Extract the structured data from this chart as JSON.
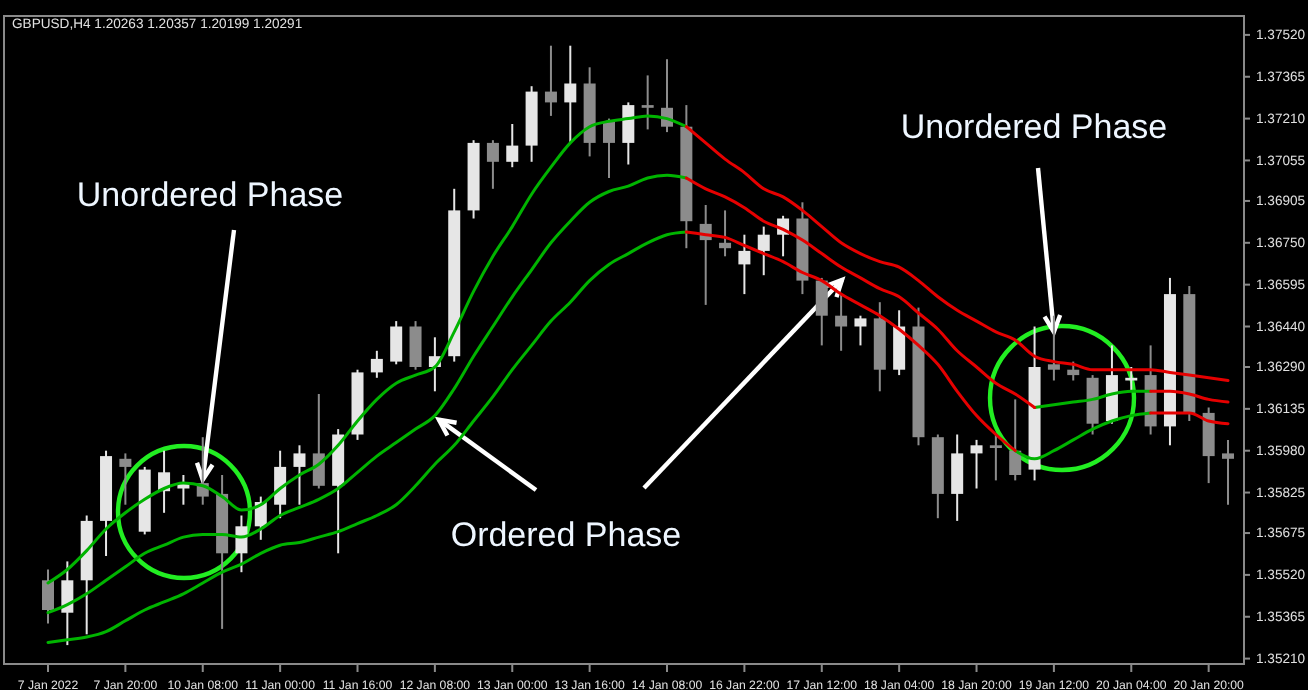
{
  "chart_data": {
    "type": "candlestick",
    "title": "GBPUSD,H4  1.20263 1.20357 1.20199 1.20291",
    "annotations": [
      {
        "text": "Unordered Phase",
        "x": "10 Jan 08:00",
        "y": 1.3585
      },
      {
        "text": "Ordered Phase",
        "x": "12 Jan 08:00",
        "y": 1.3611
      },
      {
        "text": "Unordered Phase",
        "x": "19 Jan 12:00",
        "y": 1.3642
      }
    ],
    "categories": [
      "7 Jan 2022",
      null,
      null,
      null,
      "7 Jan 20:00",
      null,
      null,
      null,
      "10 Jan 08:00",
      null,
      null,
      null,
      "11 Jan 00:00",
      null,
      null,
      null,
      "11 Jan 16:00",
      null,
      null,
      null,
      "12 Jan 08:00",
      null,
      null,
      null,
      "13 Jan 00:00",
      null,
      null,
      null,
      "13 Jan 16:00",
      null,
      null,
      null,
      "14 Jan 08:00",
      null,
      null,
      null,
      "16 Jan 22:00",
      null,
      null,
      null,
      "17 Jan 12:00",
      null,
      null,
      null,
      "18 Jan 04:00",
      null,
      null,
      null,
      "18 Jan 20:00",
      null,
      null,
      null,
      "19 Jan 12:00",
      null,
      null,
      null,
      "20 Jan 04:00",
      null,
      null,
      null,
      "20 Jan 20:00",
      null
    ],
    "ohlc": [
      [
        1.355,
        1.3554,
        1.3534,
        1.3539
      ],
      [
        1.3538,
        1.3557,
        1.3526,
        1.355
      ],
      [
        1.355,
        1.3574,
        1.353,
        1.3572
      ],
      [
        1.3572,
        1.3598,
        1.3559,
        1.3596
      ],
      [
        1.3595,
        1.3597,
        1.3578,
        1.3592
      ],
      [
        1.3568,
        1.3592,
        1.3567,
        1.3591
      ],
      [
        1.3583,
        1.3598,
        1.3575,
        1.359
      ],
      [
        1.3584,
        1.3589,
        1.3578,
        1.3586
      ],
      [
        1.3586,
        1.3603,
        1.3578,
        1.3581
      ],
      [
        1.3582,
        1.3589,
        1.3532,
        1.356
      ],
      [
        1.356,
        1.3574,
        1.3553,
        1.357
      ],
      [
        1.357,
        1.3581,
        1.3565,
        1.3579
      ],
      [
        1.3578,
        1.3598,
        1.3573,
        1.3592
      ],
      [
        1.3592,
        1.36,
        1.3578,
        1.3597
      ],
      [
        1.3597,
        1.3619,
        1.3584,
        1.3585
      ],
      [
        1.3585,
        1.3606,
        1.356,
        1.3604
      ],
      [
        1.3604,
        1.3628,
        1.3602,
        1.3627
      ],
      [
        1.3627,
        1.3635,
        1.3625,
        1.3632
      ],
      [
        1.3631,
        1.3646,
        1.363,
        1.3644
      ],
      [
        1.3644,
        1.3646,
        1.3628,
        1.3629
      ],
      [
        1.3629,
        1.364,
        1.362,
        1.3633
      ],
      [
        1.3633,
        1.3695,
        1.3631,
        1.3687
      ],
      [
        1.3687,
        1.3713,
        1.3684,
        1.3712
      ],
      [
        1.3712,
        1.3713,
        1.3695,
        1.3705
      ],
      [
        1.3705,
        1.3719,
        1.3703,
        1.3711
      ],
      [
        1.3711,
        1.3733,
        1.3705,
        1.3731
      ],
      [
        1.3731,
        1.3748,
        1.3722,
        1.3727
      ],
      [
        1.3727,
        1.3748,
        1.3712,
        1.3734
      ],
      [
        1.3734,
        1.374,
        1.3707,
        1.3712
      ],
      [
        1.372,
        1.3721,
        1.3699,
        1.3712
      ],
      [
        1.3712,
        1.3727,
        1.3704,
        1.3726
      ],
      [
        1.3726,
        1.3737,
        1.3717,
        1.3725
      ],
      [
        1.3725,
        1.3743,
        1.3716,
        1.3718
      ],
      [
        1.3718,
        1.3726,
        1.3673,
        1.3683
      ],
      [
        1.3682,
        1.3689,
        1.3652,
        1.3676
      ],
      [
        1.3675,
        1.3687,
        1.367,
        1.3673
      ],
      [
        1.3667,
        1.3678,
        1.3656,
        1.3672
      ],
      [
        1.3672,
        1.3681,
        1.3663,
        1.3678
      ],
      [
        1.3678,
        1.3685,
        1.367,
        1.3684
      ],
      [
        1.3684,
        1.369,
        1.3656,
        1.3661
      ],
      [
        1.3661,
        1.3662,
        1.3637,
        1.3648
      ],
      [
        1.3648,
        1.3656,
        1.3635,
        1.3644
      ],
      [
        1.3644,
        1.3648,
        1.3637,
        1.3647
      ],
      [
        1.3647,
        1.3653,
        1.362,
        1.3628
      ],
      [
        1.3628,
        1.365,
        1.3626,
        1.3644
      ],
      [
        1.3644,
        1.3651,
        1.36,
        1.3603
      ],
      [
        1.3603,
        1.3604,
        1.3573,
        1.3582
      ],
      [
        1.3582,
        1.3604,
        1.3572,
        1.3597
      ],
      [
        1.3597,
        1.3602,
        1.3584,
        1.36
      ],
      [
        1.36,
        1.3604,
        1.3587,
        1.3599
      ],
      [
        1.3598,
        1.3617,
        1.3587,
        1.3589
      ],
      [
        1.3591,
        1.3644,
        1.3587,
        1.3629
      ],
      [
        1.363,
        1.3648,
        1.3624,
        1.3628
      ],
      [
        1.3628,
        1.3631,
        1.3624,
        1.3626
      ],
      [
        1.3625,
        1.3626,
        1.3604,
        1.3608
      ],
      [
        1.3609,
        1.3637,
        1.3608,
        1.3626
      ],
      [
        1.3624,
        1.3629,
        1.362,
        1.3625
      ],
      [
        1.3626,
        1.3637,
        1.3604,
        1.3607
      ],
      [
        1.3607,
        1.3662,
        1.36,
        1.3656
      ],
      [
        1.3656,
        1.3659,
        1.3609,
        1.3612
      ],
      [
        1.3612,
        1.3614,
        1.3586,
        1.3596
      ],
      [
        1.3597,
        1.3602,
        1.3578,
        1.3595
      ]
    ],
    "colors": [
      "#8c8c8c",
      "#e6e6e6",
      "#e6e6e6",
      "#e6e6e6",
      "#8c8c8c",
      "#e6e6e6",
      "#e6e6e6",
      "#e6e6e6",
      "#8c8c8c",
      "#8c8c8c",
      "#e6e6e6",
      "#e6e6e6",
      "#e6e6e6",
      "#e6e6e6",
      "#8c8c8c",
      "#e6e6e6",
      "#e6e6e6",
      "#e6e6e6",
      "#e6e6e6",
      "#8c8c8c",
      "#e6e6e6",
      "#e6e6e6",
      "#e6e6e6",
      "#8c8c8c",
      "#e6e6e6",
      "#e6e6e6",
      "#8c8c8c",
      "#e6e6e6",
      "#8c8c8c",
      "#8c8c8c",
      "#e6e6e6",
      "#8c8c8c",
      "#8c8c8c",
      "#8c8c8c",
      "#8c8c8c",
      "#8c8c8c",
      "#e6e6e6",
      "#e6e6e6",
      "#e6e6e6",
      "#8c8c8c",
      "#8c8c8c",
      "#8c8c8c",
      "#e6e6e6",
      "#8c8c8c",
      "#e6e6e6",
      "#8c8c8c",
      "#8c8c8c",
      "#e6e6e6",
      "#e6e6e6",
      "#8c8c8c",
      "#8c8c8c",
      "#e6e6e6",
      "#8c8c8c",
      "#8c8c8c",
      "#8c8c8c",
      "#e6e6e6",
      "#e6e6e6",
      "#8c8c8c",
      "#e6e6e6",
      "#8c8c8c",
      "#8c8c8c",
      "#8c8c8c"
    ],
    "series": [
      {
        "type": "line",
        "color": "#00b400",
        "values": [
          1.3549,
          1.3554,
          1.3561,
          1.3569,
          1.3575,
          1.358,
          1.3584,
          1.3586,
          1.3585,
          1.3581,
          1.3576,
          1.3578,
          1.3584,
          1.3589,
          1.3593,
          1.36,
          1.3609,
          1.3617,
          1.3623,
          1.3626,
          1.3629,
          1.3642,
          1.3657,
          1.367,
          1.3681,
          1.3693,
          1.3703,
          1.3712,
          1.3718,
          1.372,
          1.3721,
          1.3722,
          1.3721,
          1.3718,
          null,
          null,
          null,
          null,
          null,
          null,
          null,
          null,
          null,
          null,
          null,
          null,
          null,
          null,
          null,
          null,
          null,
          null,
          null,
          null,
          null,
          null,
          null,
          null,
          null,
          null,
          null,
          null
        ]
      },
      {
        "type": "line",
        "color": "#e60000",
        "values": [
          null,
          null,
          null,
          null,
          null,
          null,
          null,
          null,
          null,
          null,
          null,
          null,
          null,
          null,
          null,
          null,
          null,
          null,
          null,
          null,
          null,
          null,
          null,
          null,
          null,
          null,
          null,
          null,
          null,
          null,
          null,
          null,
          null,
          1.3718,
          1.3712,
          1.3706,
          1.3701,
          1.3695,
          1.3692,
          1.3687,
          1.3681,
          1.3675,
          1.3671,
          1.3668,
          1.3666,
          1.3661,
          1.3655,
          1.365,
          1.3646,
          1.3642,
          1.3639,
          1.3633,
          1.3631,
          1.363,
          1.3628,
          1.3628,
          1.3628,
          1.3628,
          1.3627,
          1.3626,
          1.3625,
          1.3624
        ]
      },
      {
        "type": "line",
        "color": "#00b400",
        "values": [
          1.3538,
          1.3541,
          1.3545,
          1.355,
          1.3555,
          1.356,
          1.3563,
          1.3566,
          1.3567,
          1.3567,
          1.3566,
          1.3569,
          1.3574,
          1.3577,
          1.358,
          1.3584,
          1.359,
          1.3596,
          1.3601,
          1.3606,
          1.3611,
          1.3621,
          1.3633,
          1.3644,
          1.3655,
          1.3665,
          1.3675,
          1.3683,
          1.369,
          1.3694,
          1.3696,
          1.3699,
          1.37,
          1.3699,
          null,
          null,
          null,
          null,
          null,
          null,
          null,
          null,
          null,
          null,
          null,
          null,
          null,
          null,
          null,
          null,
          null,
          1.3614,
          1.3615,
          1.3616,
          1.3617,
          1.3619,
          1.362,
          1.362,
          null,
          null,
          null,
          null
        ]
      },
      {
        "type": "line",
        "color": "#e60000",
        "values": [
          null,
          null,
          null,
          null,
          null,
          null,
          null,
          null,
          null,
          null,
          null,
          null,
          null,
          null,
          null,
          null,
          null,
          null,
          null,
          null,
          null,
          null,
          null,
          null,
          null,
          null,
          null,
          null,
          null,
          null,
          null,
          null,
          null,
          1.3699,
          1.3695,
          1.3692,
          1.3688,
          1.3683,
          1.368,
          1.3676,
          1.3671,
          1.3666,
          1.3662,
          1.3658,
          1.3655,
          1.3649,
          1.3643,
          1.3635,
          1.3629,
          1.3623,
          1.3619,
          1.3614,
          null,
          null,
          null,
          null,
          null,
          1.362,
          1.362,
          1.3619,
          1.3617,
          1.3616
        ]
      },
      {
        "type": "line",
        "color": "#00b400",
        "values": [
          1.3527,
          1.3528,
          1.3529,
          1.3531,
          1.3535,
          1.3539,
          1.3542,
          1.3545,
          1.3549,
          1.3553,
          1.3556,
          1.356,
          1.3563,
          1.3564,
          1.3566,
          1.3568,
          1.3571,
          1.3574,
          1.3578,
          1.3585,
          1.3593,
          1.36,
          1.3609,
          1.3618,
          1.3628,
          1.3637,
          1.3646,
          1.3653,
          1.3661,
          1.3667,
          1.3671,
          1.3675,
          1.3678,
          1.3679,
          null,
          null,
          null,
          null,
          null,
          null,
          null,
          null,
          null,
          null,
          null,
          null,
          null,
          null,
          null,
          null,
          1.3598,
          1.3595,
          1.3598,
          1.3602,
          1.3606,
          1.3609,
          1.3611,
          1.3612,
          null,
          null,
          null,
          null
        ]
      },
      {
        "type": "line",
        "color": "#e60000",
        "values": [
          null,
          null,
          null,
          null,
          null,
          null,
          null,
          null,
          null,
          null,
          null,
          null,
          null,
          null,
          null,
          null,
          null,
          null,
          null,
          null,
          null,
          null,
          null,
          null,
          null,
          null,
          null,
          null,
          null,
          null,
          null,
          null,
          null,
          1.3679,
          1.3678,
          1.3677,
          1.3674,
          1.3671,
          1.3668,
          1.3664,
          1.3661,
          1.3656,
          1.3652,
          1.3648,
          1.3643,
          1.3637,
          1.363,
          1.362,
          1.3611,
          1.3604,
          1.3598,
          null,
          null,
          null,
          null,
          null,
          null,
          1.3612,
          1.3612,
          1.3612,
          1.3609,
          1.3608
        ]
      }
    ],
    "ylim": [
      1.3519,
      1.3759
    ],
    "yticks": [
      {
        "value": 1.3752,
        "label": "1.37520"
      },
      {
        "value": 1.37365,
        "label": "1.37365"
      },
      {
        "value": 1.3721,
        "label": "1.37210"
      },
      {
        "value": 1.37055,
        "label": "1.37055"
      },
      {
        "value": 1.36905,
        "label": "1.36905"
      },
      {
        "value": 1.3675,
        "label": "1.36750"
      },
      {
        "value": 1.36595,
        "label": "1.36595"
      },
      {
        "value": 1.3644,
        "label": "1.36440"
      },
      {
        "value": 1.3629,
        "label": "1.36290"
      },
      {
        "value": 1.36135,
        "label": "1.36135"
      },
      {
        "value": 1.3598,
        "label": "1.35980"
      },
      {
        "value": 1.35825,
        "label": "1.35825"
      },
      {
        "value": 1.35675,
        "label": "1.35675"
      },
      {
        "value": 1.3552,
        "label": "1.35520"
      },
      {
        "value": 1.35365,
        "label": "1.35365"
      },
      {
        "value": 1.3521,
        "label": "1.35210"
      }
    ]
  }
}
